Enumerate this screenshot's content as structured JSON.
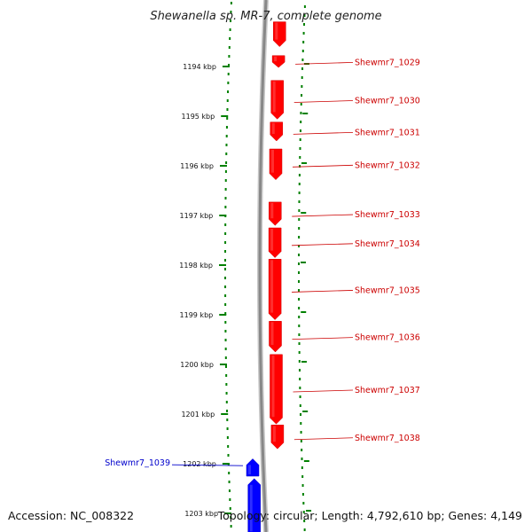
{
  "title": "Shewanella sp. MR-7, complete genome",
  "footer": {
    "accession": "Accession: NC_008322",
    "summary": "Topology: circular; Length: 4,792,610 bp; Genes: 4,149"
  },
  "colors": {
    "forward_gene": "#ff0000",
    "reverse_gene": "#0000ff",
    "forward_label": "#cc0000",
    "reverse_label": "#0000cc",
    "backbone": "#888888",
    "ticks": "#008000"
  },
  "ticks": [
    {
      "label": "1194 kbp",
      "kbp": 1194
    },
    {
      "label": "1195 kbp",
      "kbp": 1195
    },
    {
      "label": "1196 kbp",
      "kbp": 1196
    },
    {
      "label": "1197 kbp",
      "kbp": 1197
    },
    {
      "label": "1198 kbp",
      "kbp": 1198
    },
    {
      "label": "1199 kbp",
      "kbp": 1199
    },
    {
      "label": "1200 kbp",
      "kbp": 1200
    },
    {
      "label": "1201 kbp",
      "kbp": 1201
    },
    {
      "label": "1202 kbp",
      "kbp": 1202
    },
    {
      "label": "1203 kbp",
      "kbp": 1203
    }
  ],
  "genes": [
    {
      "label": "",
      "strand": "+",
      "start_kbp": 1193.1,
      "end_kbp": 1193.6
    },
    {
      "label": "Shewmr7_1029",
      "strand": "+",
      "start_kbp": 1193.78,
      "end_kbp": 1194.02
    },
    {
      "label": "Shewmr7_1030",
      "strand": "+",
      "start_kbp": 1194.28,
      "end_kbp": 1195.06
    },
    {
      "label": "Shewmr7_1031",
      "strand": "+",
      "start_kbp": 1195.12,
      "end_kbp": 1195.5
    },
    {
      "label": "Shewmr7_1032",
      "strand": "+",
      "start_kbp": 1195.66,
      "end_kbp": 1196.28
    },
    {
      "label": "Shewmr7_1033",
      "strand": "+",
      "start_kbp": 1196.73,
      "end_kbp": 1197.2
    },
    {
      "label": "Shewmr7_1034",
      "strand": "+",
      "start_kbp": 1197.25,
      "end_kbp": 1197.85
    },
    {
      "label": "Shewmr7_1035",
      "strand": "+",
      "start_kbp": 1197.88,
      "end_kbp": 1199.1
    },
    {
      "label": "Shewmr7_1036",
      "strand": "+",
      "start_kbp": 1199.13,
      "end_kbp": 1199.75
    },
    {
      "label": "Shewmr7_1037",
      "strand": "+",
      "start_kbp": 1199.8,
      "end_kbp": 1201.2
    },
    {
      "label": "Shewmr7_1038",
      "strand": "+",
      "start_kbp": 1201.22,
      "end_kbp": 1201.7
    },
    {
      "label": "Shewmr7_1039",
      "strand": "-",
      "start_kbp": 1201.9,
      "end_kbp": 1202.25
    },
    {
      "label": "",
      "strand": "-",
      "start_kbp": 1202.3,
      "end_kbp": 1203.4
    }
  ]
}
